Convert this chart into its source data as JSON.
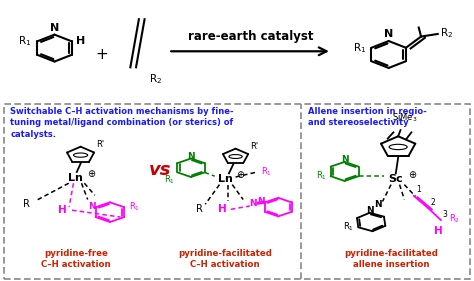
{
  "bg_top": "#d6eaf8",
  "bg_bottom": "#ffffff",
  "border_color": "#888888",
  "blue_text": "#1a1aff",
  "magenta": "#ff00ff",
  "green": "#008000",
  "red": "#cc0000",
  "black": "#000000",
  "dark_red": "#cc2200",
  "top_label": "rare-earth catalyst",
  "left_title": "Switchable C–H activation mechanisms by fine-\ntuning metal/ligand combination (or sterics) of\ncatalysts.",
  "right_title": "Allene insertion in regio-\nand stereoselectivity",
  "label1": "pyridine-free\nC–H activation",
  "label2": "pyridine-facilitated\nC–H activation",
  "label3": "pyridine-facilitated\nallene insertion",
  "vs_text": "vs",
  "fig_width": 4.74,
  "fig_height": 2.81,
  "dpi": 100
}
